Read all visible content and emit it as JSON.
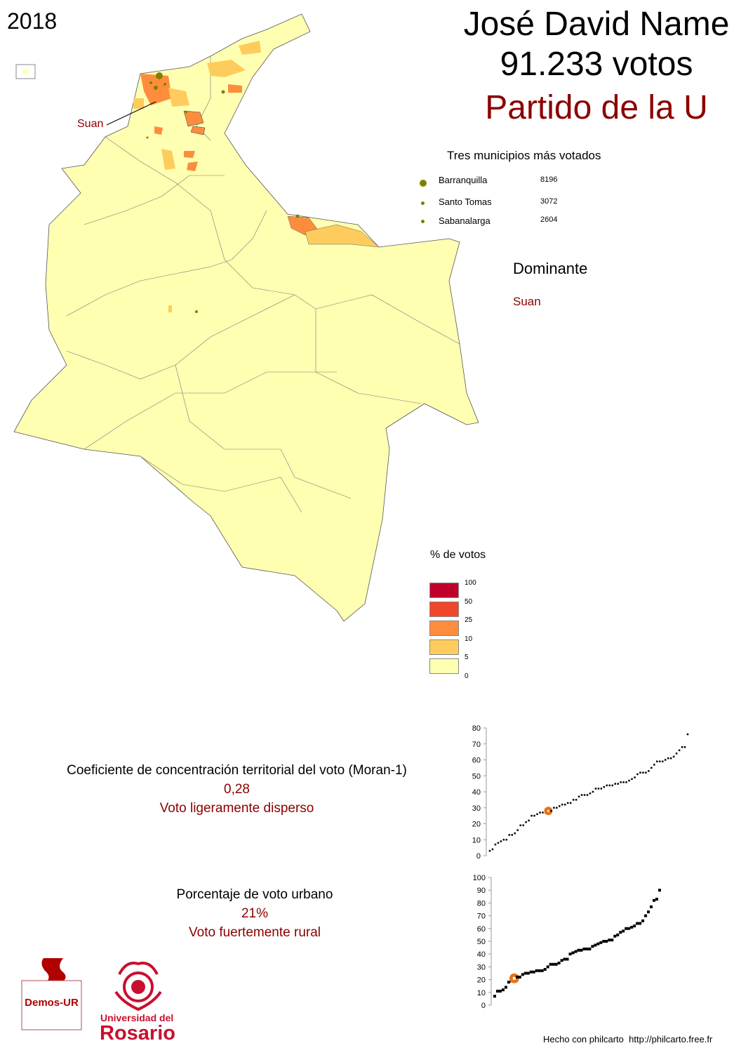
{
  "year": "2018",
  "candidate": {
    "name": "José David Name",
    "votes": "91.233 votos",
    "party": "Partido de la U"
  },
  "top_municipalities": {
    "title": "Tres municipios más votados",
    "items": [
      {
        "name": "Barranquilla",
        "votes": "8196"
      },
      {
        "name": "Santo Tomas",
        "votes": "3072"
      },
      {
        "name": "Sabanalarga",
        "votes": "2604"
      }
    ],
    "marker_color": "#7f7f00"
  },
  "dominant": {
    "title": "Dominante",
    "value": "Suan"
  },
  "map": {
    "callout_label": "Suan",
    "base_color": "#ffffb2"
  },
  "legend": {
    "title": "% de votos",
    "breaks": [
      "100",
      "50",
      "25",
      "10",
      "5",
      "0"
    ],
    "colors": [
      "#c0002a",
      "#f0462a",
      "#fd8d3c",
      "#fecc5c",
      "#ffffb2"
    ]
  },
  "moran": {
    "title": "Coeficiente de concentración territorial del voto (Moran-1)",
    "value": "0,28",
    "label": "Voto ligeramente disperso"
  },
  "urban": {
    "title": "Porcentaje de voto urbano",
    "value": "21%",
    "label": "Voto fuertemente rural"
  },
  "logos": {
    "demos": "Demos-UR",
    "rosario_line1": "Universidad del",
    "rosario_line2": "Rosario"
  },
  "footer": {
    "credit": "Hecho con philcarto",
    "url": "http://philcarto.free.fr"
  },
  "chart_data": [
    {
      "type": "scatter",
      "title": "",
      "ylim": [
        0,
        80
      ],
      "yticks": [
        "0",
        "10",
        "20",
        "30",
        "40",
        "50",
        "60",
        "70",
        "80"
      ],
      "values": [
        3,
        4,
        7,
        8,
        9,
        10,
        10,
        13,
        13,
        14,
        16,
        19,
        19,
        21,
        22,
        25,
        25,
        26,
        27,
        27,
        27,
        28,
        28,
        30,
        30,
        31,
        32,
        32,
        33,
        33,
        35,
        35,
        37,
        38,
        38,
        38,
        39,
        40,
        42,
        42,
        42,
        43,
        44,
        44,
        44,
        45,
        45,
        46,
        46,
        46,
        47,
        48,
        49,
        51,
        52,
        52,
        52,
        53,
        55,
        57,
        59,
        59,
        59,
        60,
        61,
        61,
        62,
        64,
        66,
        68,
        68,
        76
      ],
      "highlight_index": 21,
      "highlight_color": "#e8731a"
    },
    {
      "type": "scatter",
      "title": "",
      "ylim": [
        0,
        100
      ],
      "yticks": [
        "0",
        "10",
        "20",
        "30",
        "40",
        "50",
        "60",
        "70",
        "80",
        "90",
        "100"
      ],
      "values": [
        7,
        11,
        11,
        12,
        14,
        18,
        19,
        21,
        22,
        22,
        24,
        25,
        25,
        26,
        26,
        27,
        27,
        27,
        28,
        30,
        32,
        32,
        32,
        33,
        35,
        36,
        36,
        40,
        41,
        42,
        43,
        43,
        44,
        44,
        44,
        46,
        47,
        48,
        49,
        50,
        50,
        51,
        51,
        54,
        55,
        57,
        58,
        60,
        60,
        61,
        62,
        64,
        64,
        66,
        70,
        73,
        77,
        82,
        83,
        90
      ],
      "highlight_index": 7,
      "highlight_color": "#e8731a"
    }
  ]
}
